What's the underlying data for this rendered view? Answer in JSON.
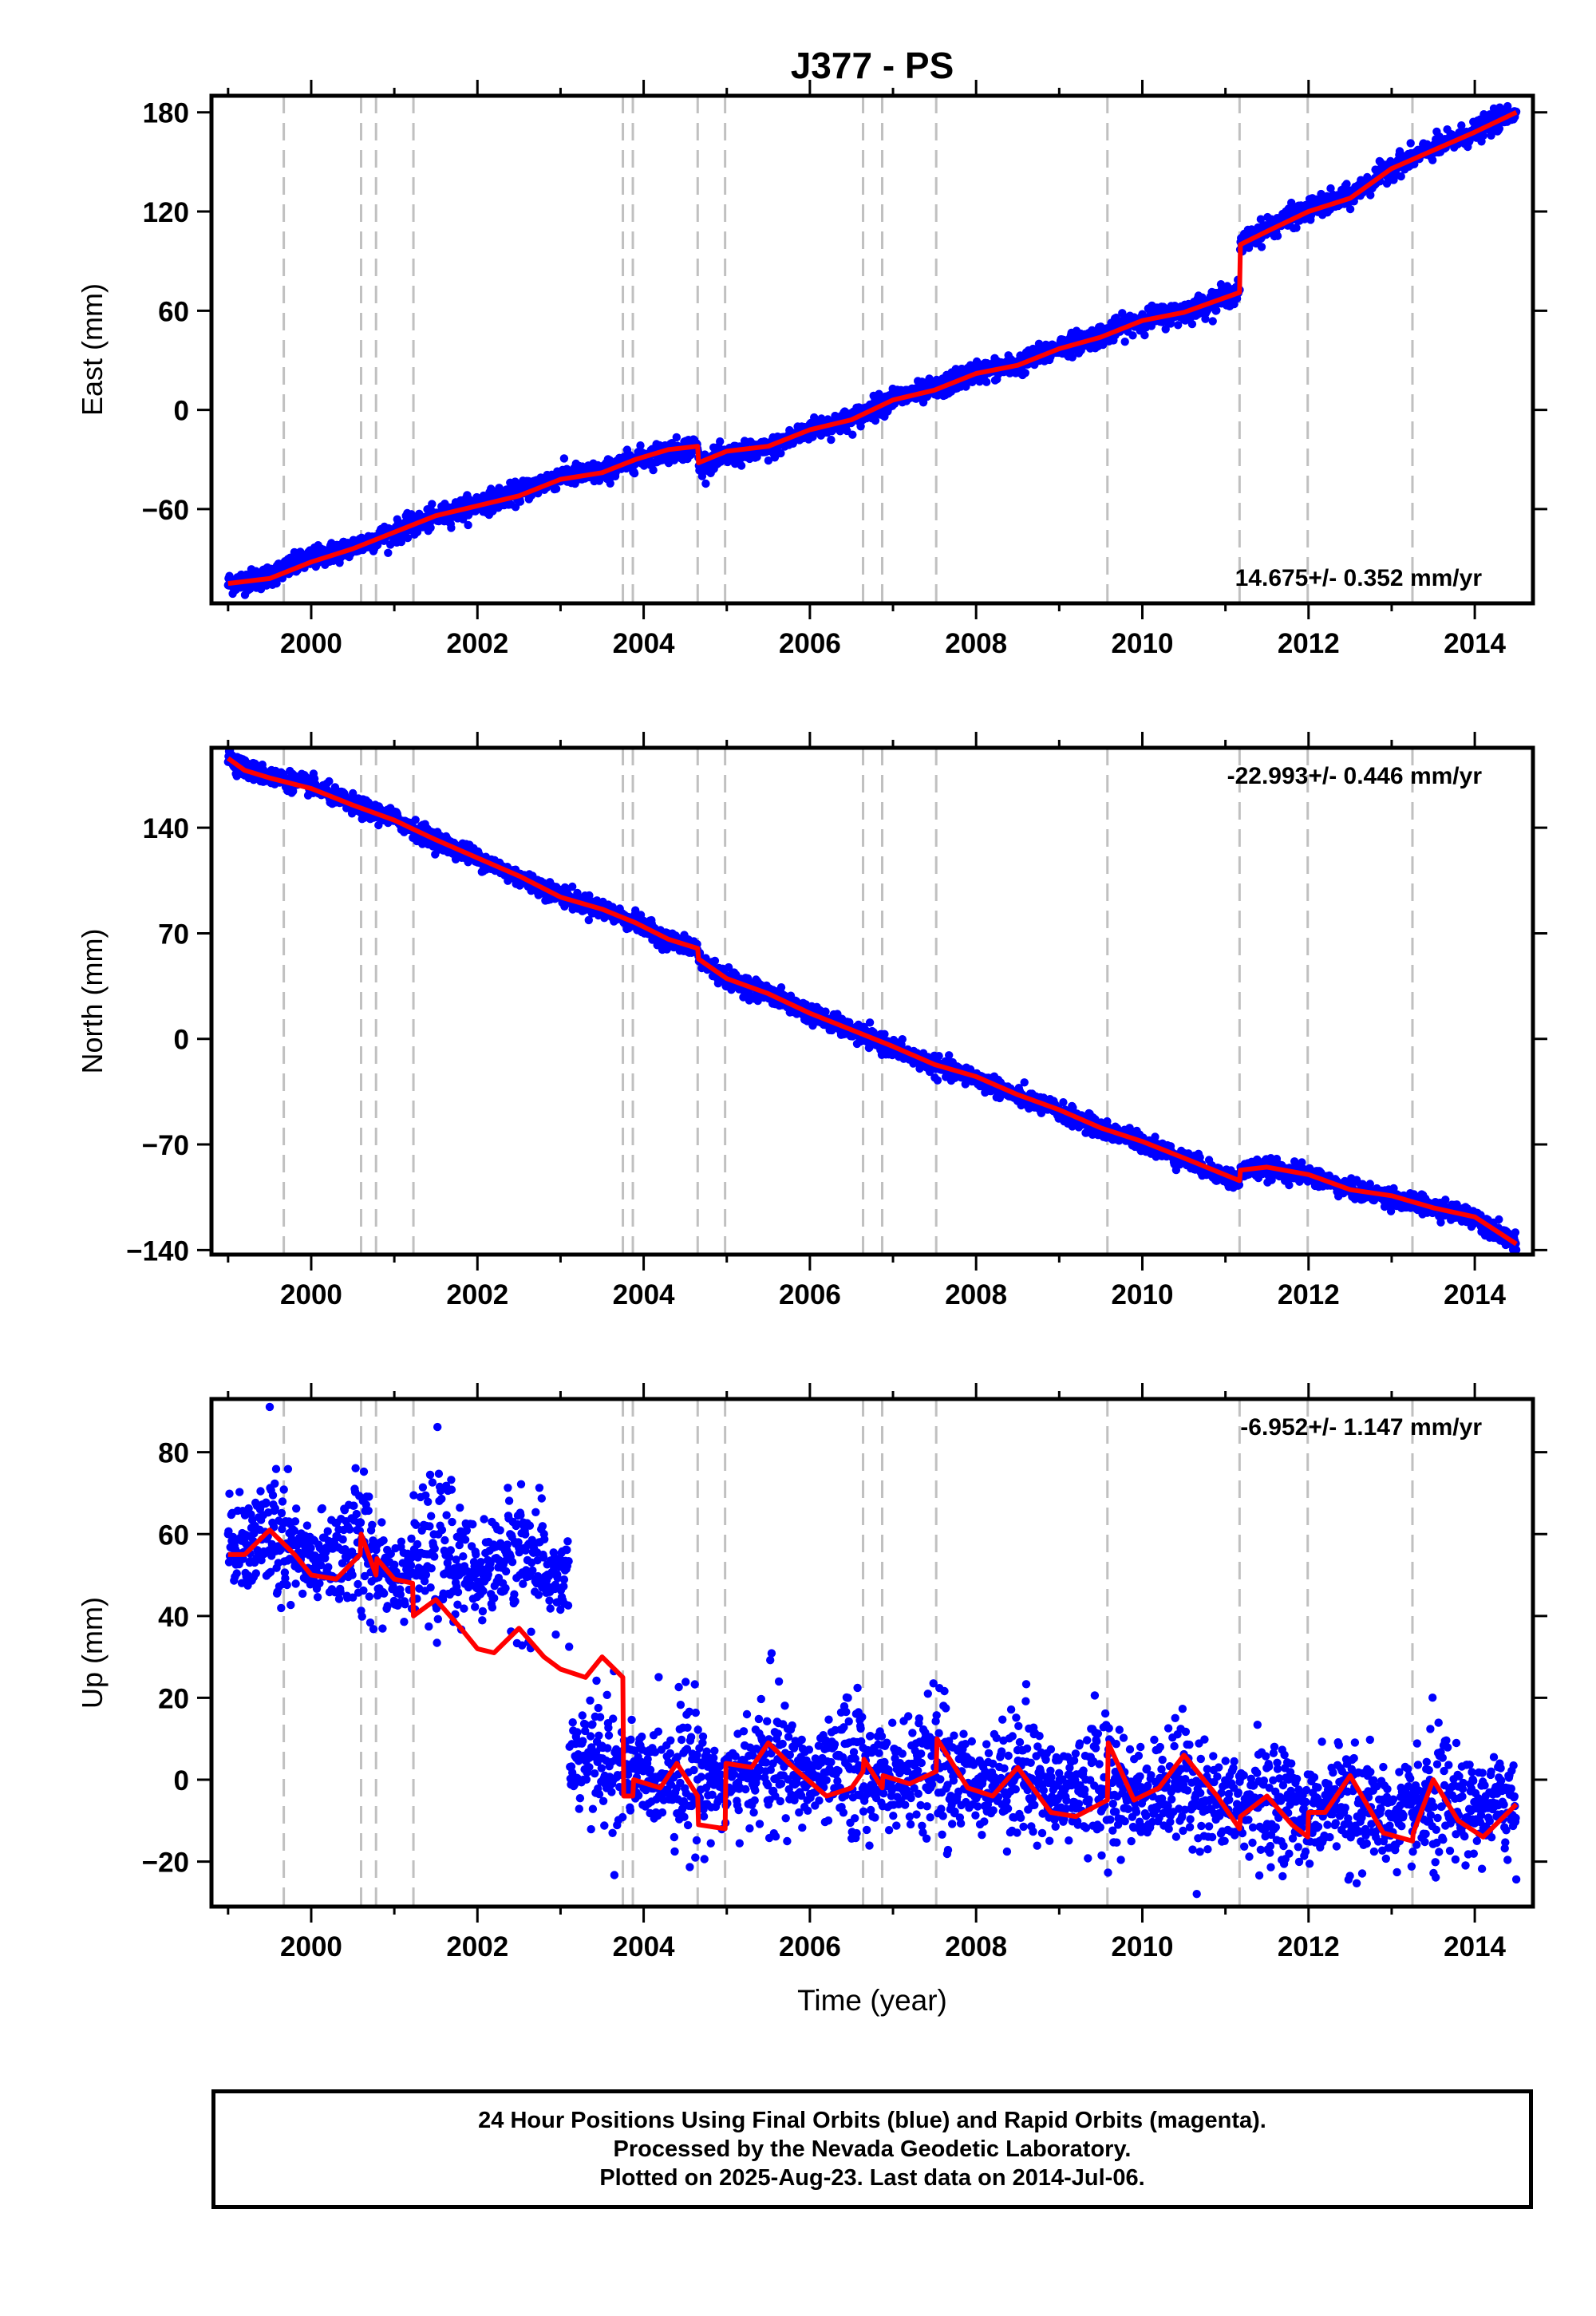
{
  "title": "J377 - PS",
  "footer": {
    "line1": "24 Hour Positions Using Final Orbits (blue) and Rapid Orbits (magenta).",
    "line2": "Processed by the Nevada Geodetic Laboratory.",
    "line3": "Plotted on 2025-Aug-23. Last data on 2014-Jul-06."
  },
  "colors": {
    "data": "#0000ff",
    "model": "#ff0000",
    "event_lines": "#c0c0c0"
  },
  "chart_data": [
    {
      "type": "scatter",
      "ylabel": "East (mm)",
      "xlabel": "",
      "xlim": [
        1998.8,
        2014.7
      ],
      "ylim": [
        -117,
        190
      ],
      "yticks": [
        180,
        120,
        60,
        0,
        -60
      ],
      "xticks": [
        2000,
        2002,
        2004,
        2006,
        2008,
        2010,
        2012,
        2014
      ],
      "rate_label": "14.675+/- 0.352 mm/yr",
      "rate_position": "bottom-right",
      "event_lines": [
        1999.67,
        2000.6,
        2000.78,
        2001.23,
        2003.75,
        2003.87,
        2004.65,
        2004.98,
        2006.64,
        2006.87,
        2007.52,
        2009.58,
        2011.17,
        2011.99,
        2013.25
      ],
      "series": [
        {
          "kind": "data",
          "noise": 3.2,
          "x": [
            1999.0,
            1999.4,
            1999.7,
            2000.0,
            2000.5,
            2001.0,
            2001.5,
            2002.0,
            2002.5,
            2003.0,
            2003.5,
            2003.9,
            2004.3,
            2004.65,
            2004.66,
            2005.0,
            2005.5,
            2006.0,
            2006.5,
            2007.0,
            2007.5,
            2008.0,
            2008.5,
            2009.0,
            2009.5,
            2010.0,
            2010.5,
            2011.17,
            2011.18,
            2011.5,
            2012.0,
            2012.5,
            2013.0,
            2013.5,
            2014.0,
            2014.5
          ],
          "y": [
            -105,
            -102,
            -96,
            -90,
            -83,
            -74,
            -65,
            -57,
            -50,
            -40,
            -38,
            -30,
            -25,
            -22,
            -33,
            -28,
            -24,
            -12,
            -6,
            7,
            12,
            23,
            27,
            38,
            45,
            55,
            59,
            72,
            100,
            110,
            121,
            129,
            147,
            158,
            168,
            181
          ]
        },
        {
          "kind": "model",
          "x": [
            1999.0,
            1999.5,
            2000.0,
            2000.5,
            2001.0,
            2001.5,
            2002.0,
            2002.5,
            2003.0,
            2003.5,
            2003.9,
            2004.3,
            2004.65,
            2004.66,
            2005.0,
            2005.5,
            2006.0,
            2006.5,
            2007.0,
            2007.5,
            2008.0,
            2008.5,
            2009.0,
            2009.5,
            2010.0,
            2010.5,
            2011.17,
            2011.18,
            2011.5,
            2012.0,
            2012.5,
            2013.0,
            2013.5,
            2014.0,
            2014.5
          ],
          "y": [
            -105,
            -102,
            -92,
            -84,
            -74,
            -64,
            -58,
            -52,
            -42,
            -38,
            -30,
            -24,
            -22,
            -32,
            -25,
            -22,
            -12,
            -6,
            6,
            12,
            22,
            27,
            37,
            44,
            54,
            59,
            71,
            100,
            108,
            120,
            128,
            146,
            157,
            168,
            180
          ]
        }
      ]
    },
    {
      "type": "scatter",
      "ylabel": "North (mm)",
      "xlabel": "",
      "xlim": [
        1998.8,
        2014.7
      ],
      "ylim": [
        -143,
        193
      ],
      "yticks": [
        140,
        70,
        0,
        -70,
        -140
      ],
      "xticks": [
        2000,
        2002,
        2004,
        2006,
        2008,
        2010,
        2012,
        2014
      ],
      "rate_label": "-22.993+/- 0.446 mm/yr",
      "rate_position": "top-right",
      "event_lines": [
        1999.67,
        2000.6,
        2000.78,
        2001.23,
        2003.75,
        2003.87,
        2004.65,
        2004.98,
        2006.64,
        2006.87,
        2007.52,
        2009.58,
        2011.17,
        2011.99,
        2013.25
      ],
      "series": [
        {
          "kind": "data",
          "noise": 3.0,
          "x": [
            1999.0,
            1999.2,
            1999.5,
            2000.0,
            2000.5,
            2001.0,
            2001.5,
            2002.0,
            2002.5,
            2003.0,
            2003.5,
            2003.9,
            2004.3,
            2004.65,
            2004.66,
            2005.0,
            2005.5,
            2006.0,
            2006.5,
            2007.0,
            2007.5,
            2008.0,
            2008.5,
            2009.0,
            2009.5,
            2010.0,
            2010.5,
            2011.17,
            2011.18,
            2011.5,
            2012.0,
            2012.5,
            2013.0,
            2013.5,
            2014.0,
            2014.5
          ],
          "y": [
            188,
            179,
            174,
            168,
            155,
            146,
            132,
            120,
            107,
            95,
            86,
            77,
            65,
            60,
            53,
            40,
            30,
            17,
            5,
            -6,
            -18,
            -26,
            -38,
            -48,
            -60,
            -68,
            -80,
            -95,
            -87,
            -86,
            -90,
            -100,
            -105,
            -112,
            -118,
            -135
          ]
        },
        {
          "kind": "model",
          "x": [
            1999.0,
            1999.2,
            1999.5,
            2000.0,
            2000.5,
            2001.0,
            2001.5,
            2002.0,
            2002.5,
            2003.0,
            2003.5,
            2003.9,
            2004.3,
            2004.65,
            2004.66,
            2005.0,
            2005.5,
            2006.0,
            2006.5,
            2007.0,
            2007.5,
            2008.0,
            2008.5,
            2009.0,
            2009.5,
            2010.0,
            2010.5,
            2011.17,
            2011.18,
            2011.5,
            2012.0,
            2012.5,
            2013.0,
            2013.5,
            2014.0,
            2014.5
          ],
          "y": [
            186,
            178,
            173,
            166,
            155,
            145,
            132,
            120,
            108,
            94,
            86,
            77,
            66,
            60,
            53,
            40,
            30,
            17,
            6,
            -5,
            -17,
            -25,
            -37,
            -47,
            -59,
            -68,
            -79,
            -94,
            -87,
            -85,
            -90,
            -100,
            -104,
            -112,
            -118,
            -136
          ]
        }
      ]
    },
    {
      "type": "scatter",
      "ylabel": "Up (mm)",
      "xlabel": "Time (year)",
      "xlim": [
        1998.8,
        2014.7
      ],
      "ylim": [
        -31,
        93
      ],
      "yticks": [
        80,
        60,
        40,
        20,
        0,
        -20
      ],
      "xticks": [
        2000,
        2002,
        2004,
        2006,
        2008,
        2010,
        2012,
        2014
      ],
      "rate_label": "-6.952+/- 1.147 mm/yr",
      "rate_position": "top-right",
      "event_lines": [
        1999.67,
        2000.6,
        2000.78,
        2001.23,
        2003.75,
        2003.87,
        2004.65,
        2004.98,
        2006.64,
        2006.87,
        2007.52,
        2009.58,
        2011.17,
        2011.99,
        2013.25
      ],
      "series": [
        {
          "kind": "data",
          "noise": 8.0,
          "x": [
            1999.0,
            1999.5,
            2000.0,
            2000.5,
            2001.0,
            2001.5,
            2002.0,
            2002.5,
            2003.0,
            2003.1,
            2003.11,
            2003.5,
            2004.0,
            2004.5,
            2005.0,
            2005.5,
            2006.0,
            2006.5,
            2007.0,
            2007.5,
            2008.0,
            2008.5,
            2009.0,
            2009.5,
            2010.0,
            2010.5,
            2011.0,
            2011.5,
            2012.0,
            2012.5,
            2013.0,
            2013.5,
            2014.0,
            2014.5
          ],
          "y": [
            55,
            60,
            52,
            58,
            50,
            56,
            50,
            56,
            48,
            50,
            4,
            5,
            0,
            3,
            -2,
            5,
            0,
            4,
            0,
            3,
            -1,
            2,
            -3,
            0,
            -4,
            0,
            -7,
            -4,
            -9,
            -5,
            -10,
            -6,
            -8,
            -4
          ]
        },
        {
          "kind": "model",
          "x": [
            1999.0,
            1999.2,
            1999.5,
            1999.8,
            2000.0,
            2000.3,
            2000.59,
            2000.6,
            2000.78,
            2000.79,
            2001.0,
            2001.22,
            2001.23,
            2001.5,
            2001.8,
            2002.0,
            2002.2,
            2002.5,
            2002.8,
            2003.0,
            2003.3,
            2003.5,
            2003.75,
            2003.76,
            2003.87,
            2003.88,
            2004.2,
            2004.4,
            2004.65,
            2004.66,
            2004.98,
            2004.99,
            2005.3,
            2005.5,
            2005.8,
            2006.2,
            2006.5,
            2006.64,
            2006.65,
            2006.87,
            2006.88,
            2007.2,
            2007.52,
            2007.53,
            2007.9,
            2008.2,
            2008.5,
            2008.9,
            2009.2,
            2009.58,
            2009.59,
            2009.9,
            2010.2,
            2010.5,
            2010.9,
            2011.17,
            2011.18,
            2011.5,
            2011.8,
            2011.99,
            2012.0,
            2012.2,
            2012.5,
            2012.9,
            2013.25,
            2013.26,
            2013.5,
            2013.8,
            2014.1,
            2014.5
          ],
          "y": [
            55,
            55,
            61,
            55,
            50,
            49,
            55,
            60,
            50,
            54,
            49,
            48,
            40,
            44,
            37,
            32,
            31,
            37,
            30,
            27,
            25,
            30,
            25,
            -4,
            -4,
            0,
            -2,
            4,
            -4,
            -11,
            -12,
            4,
            3,
            9,
            3,
            -4,
            -2,
            2,
            5,
            -2,
            1,
            -1,
            2,
            10,
            -2,
            -4,
            3,
            -8,
            -9,
            -5,
            9,
            -5,
            -2,
            6,
            -4,
            -12,
            -9,
            -4,
            -11,
            -14,
            -8,
            -8,
            1,
            -13,
            -15,
            -13,
            0,
            -10,
            -14,
            -6
          ]
        }
      ]
    }
  ]
}
